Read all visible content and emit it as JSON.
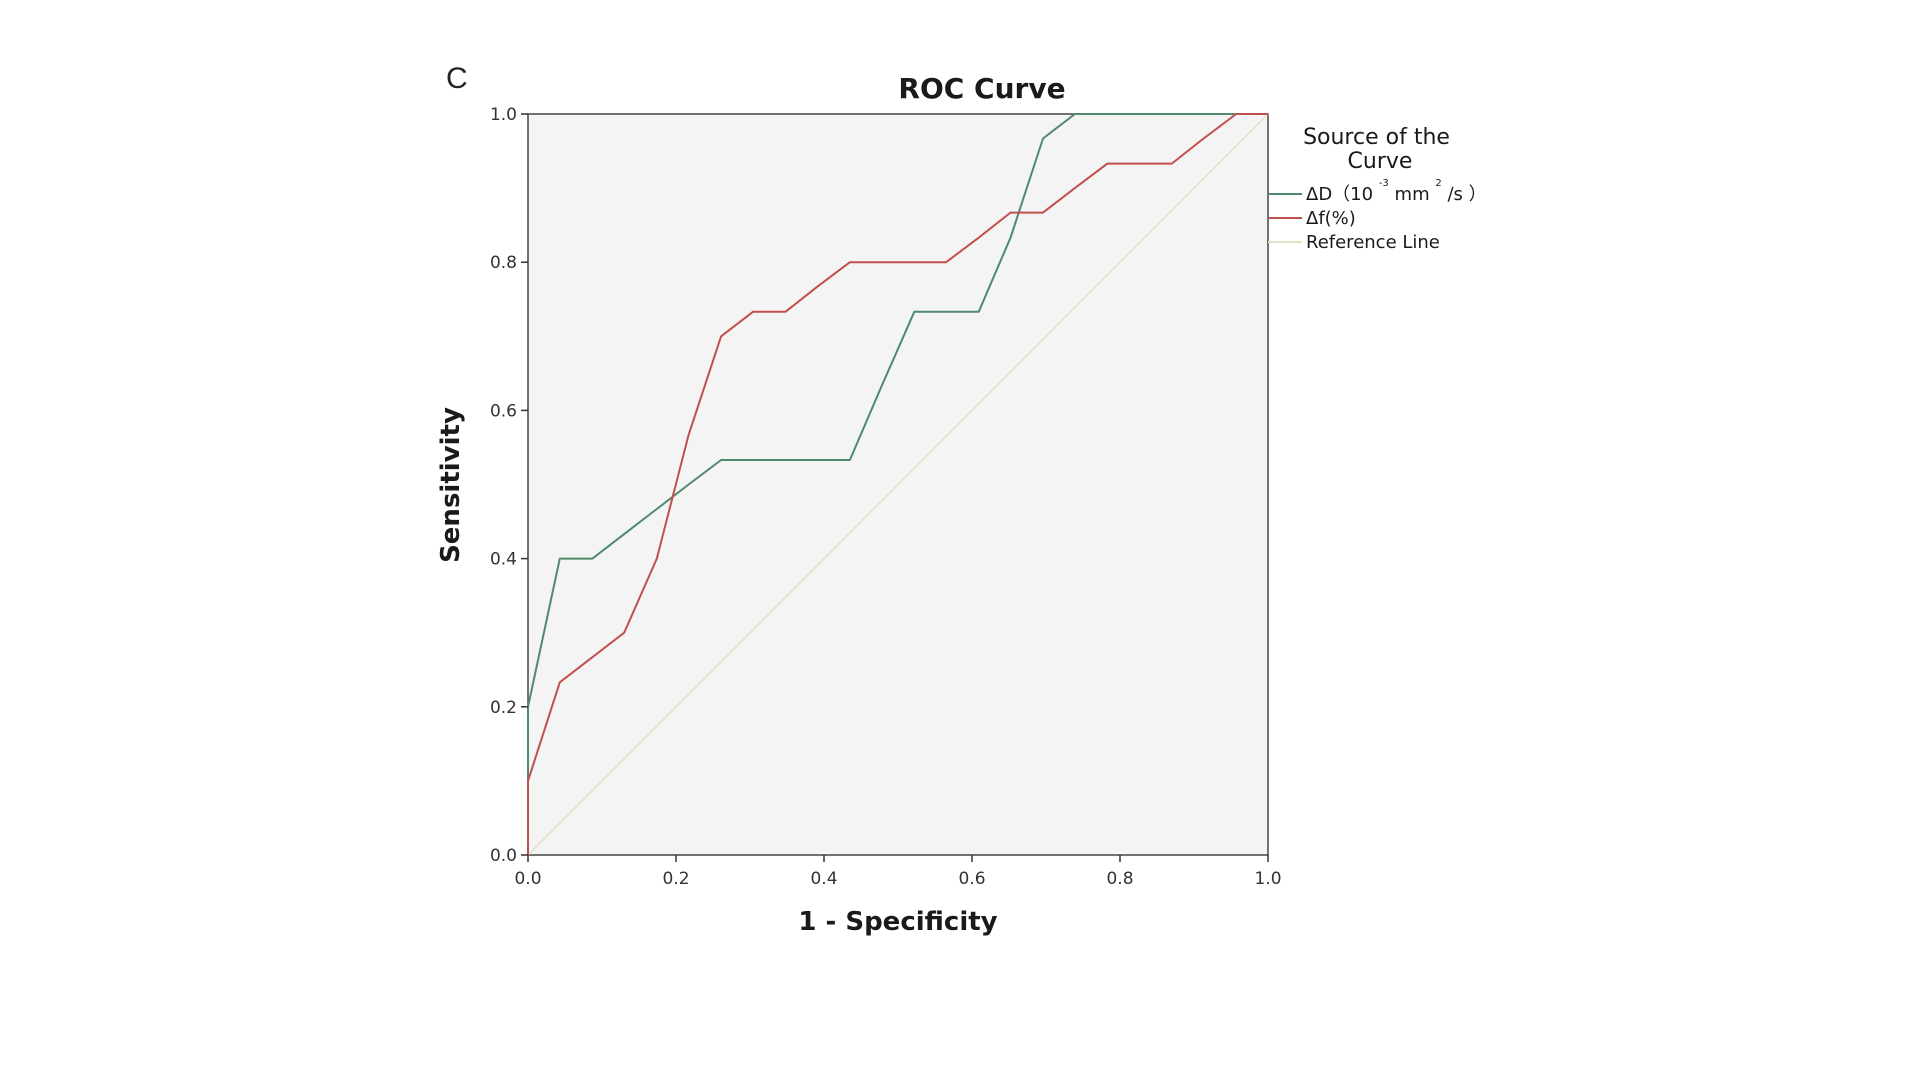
{
  "panel_label": "C",
  "colors": {
    "series_1": "#4e8a6b",
    "series_2": "#c0504d",
    "reference": "#e3e0c4",
    "plot_bg": "#f4f4f4",
    "axis": "#333333"
  },
  "chart_data": {
    "type": "line",
    "title": "ROC Curve",
    "xlabel": "1 - Specificity",
    "ylabel": "Sensitivity",
    "xlim": [
      0,
      1
    ],
    "ylim": [
      0,
      1
    ],
    "xticks": [
      "0.0",
      "0.2",
      "0.4",
      "0.6",
      "0.8",
      "1.0"
    ],
    "yticks": [
      "0.0",
      "0.2",
      "0.4",
      "0.6",
      "0.8",
      "1.0"
    ],
    "grid": false,
    "legend_title": "Source of the Curve",
    "legend_position": "right",
    "series": [
      {
        "name": "ΔD（10 -3 mm 2 /s ）",
        "legend_main": "ΔD（10",
        "legend_sup1": "-3",
        "legend_mid": "mm",
        "legend_sup2": "2",
        "legend_end": "/s ）",
        "color": "#4e8a6b",
        "x": [
          0.0,
          0.0,
          0.043,
          0.087,
          0.13,
          0.174,
          0.217,
          0.261,
          0.304,
          0.348,
          0.391,
          0.435,
          0.478,
          0.522,
          0.565,
          0.609,
          0.652,
          0.696,
          0.739,
          0.783,
          0.826,
          0.87,
          0.913,
          0.957,
          1.0
        ],
        "y": [
          0.0,
          0.2,
          0.4,
          0.4,
          0.433,
          0.467,
          0.5,
          0.533,
          0.533,
          0.533,
          0.533,
          0.533,
          0.633,
          0.733,
          0.733,
          0.733,
          0.833,
          0.967,
          1.0,
          1.0,
          1.0,
          1.0,
          1.0,
          1.0,
          1.0
        ]
      },
      {
        "name": "Δf(%)",
        "color": "#c0504d",
        "x": [
          0.0,
          0.0,
          0.043,
          0.087,
          0.13,
          0.174,
          0.217,
          0.261,
          0.304,
          0.348,
          0.391,
          0.435,
          0.478,
          0.522,
          0.565,
          0.609,
          0.652,
          0.696,
          0.739,
          0.783,
          0.826,
          0.87,
          0.913,
          0.957,
          1.0
        ],
        "y": [
          0.0,
          0.1,
          0.233,
          0.267,
          0.3,
          0.4,
          0.567,
          0.7,
          0.733,
          0.733,
          0.767,
          0.8,
          0.8,
          0.8,
          0.8,
          0.833,
          0.867,
          0.867,
          0.9,
          0.933,
          0.933,
          0.933,
          0.967,
          1.0,
          1.0
        ]
      },
      {
        "name": "Reference Line",
        "color": "#e3e0c4",
        "x": [
          0.0,
          1.0
        ],
        "y": [
          0.0,
          1.0
        ]
      }
    ]
  }
}
